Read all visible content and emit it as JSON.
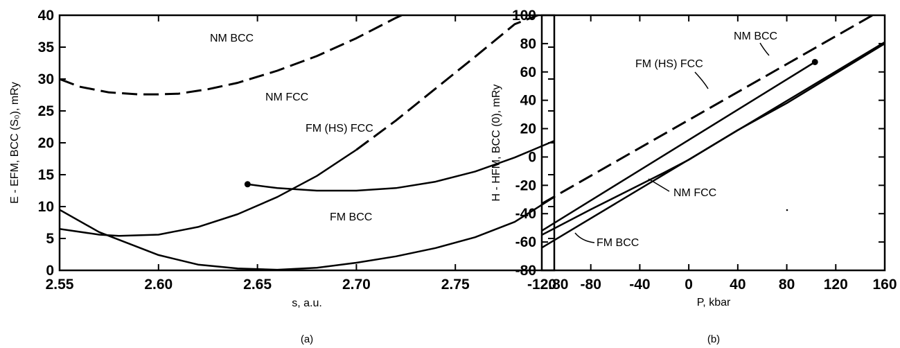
{
  "chart_data": [
    {
      "type": "line",
      "caption": "(a)",
      "xlabel": "s, a.u.",
      "ylabel": "E - EFM, BCC (S₀), mRy",
      "xlim": [
        2.55,
        2.8
      ],
      "ylim": [
        0,
        40
      ],
      "xticks": [
        2.55,
        2.6,
        2.65,
        2.7,
        2.75,
        2.8
      ],
      "xtick_labels": [
        "2.55",
        "2.60",
        "2.65",
        "2.70",
        "2.75",
        "2.80"
      ],
      "yticks": [
        0,
        5,
        10,
        15,
        20,
        25,
        30,
        35,
        40
      ],
      "ytick_labels": [
        "0",
        "5",
        "10",
        "15",
        "20",
        "25",
        "30",
        "35",
        "40"
      ],
      "series": [
        {
          "name": "NM BCC",
          "dashed": true,
          "x": [
            2.55,
            2.56,
            2.575,
            2.59,
            2.6,
            2.61,
            2.625,
            2.64,
            2.66,
            2.68,
            2.7,
            2.72,
            2.73
          ],
          "y": [
            30.0,
            28.8,
            27.9,
            27.6,
            27.6,
            27.7,
            28.4,
            29.4,
            31.3,
            33.6,
            36.4,
            39.6,
            41.0
          ]
        },
        {
          "name": "NM FCC",
          "dashed": false,
          "x": [
            2.55,
            2.57,
            2.58,
            2.6,
            2.62,
            2.64,
            2.66,
            2.68,
            2.7
          ],
          "y": [
            6.5,
            5.6,
            5.4,
            5.6,
            6.8,
            8.8,
            11.5,
            14.8,
            18.9
          ]
        },
        {
          "name": "NM FCC",
          "dashed": true,
          "x": [
            2.7,
            2.72,
            2.74,
            2.76,
            2.78,
            2.8
          ],
          "y": [
            18.9,
            23.5,
            28.5,
            33.5,
            38.6,
            41.0
          ]
        },
        {
          "name": "FM (HS) FCC",
          "dashed": false,
          "x": [
            2.645,
            2.66,
            2.68,
            2.7,
            2.72,
            2.74,
            2.76,
            2.78,
            2.8
          ],
          "y": [
            13.5,
            12.9,
            12.5,
            12.5,
            12.9,
            13.9,
            15.5,
            17.7,
            20.3
          ]
        },
        {
          "name": "FM BCC",
          "dashed": false,
          "x": [
            2.55,
            2.57,
            2.6,
            2.62,
            2.64,
            2.66,
            2.68,
            2.7,
            2.72,
            2.74,
            2.76,
            2.78,
            2.8
          ],
          "y": [
            9.5,
            6.0,
            2.4,
            0.9,
            0.3,
            0.1,
            0.4,
            1.2,
            2.2,
            3.5,
            5.2,
            7.6,
            11.5
          ]
        }
      ],
      "markers": [
        {
          "x": 2.645,
          "y": 13.5
        }
      ],
      "annotations": [
        "NM BCC",
        "NM FCC",
        "FM (HS) FCC",
        "FM BCC"
      ]
    },
    {
      "type": "line",
      "caption": "(b)",
      "xlabel": "P, kbar",
      "ylabel": "H - HFM, BCC (0), mRy",
      "xlim": [
        -120,
        160
      ],
      "ylim": [
        -80,
        100
      ],
      "xticks": [
        -120,
        -80,
        -40,
        0,
        40,
        80,
        120,
        160
      ],
      "xtick_labels": [
        "-120",
        "-80",
        "-40",
        "0",
        "40",
        "80",
        "120",
        "160"
      ],
      "yticks": [
        -80,
        -60,
        -40,
        -20,
        0,
        20,
        40,
        60,
        80,
        100
      ],
      "ytick_labels": [
        "-80",
        "-60",
        "-40",
        "-20",
        "0",
        "20",
        "40",
        "60",
        "80",
        "100"
      ],
      "series": [
        {
          "name": "NM BCC",
          "dashed": true,
          "x": [
            -120,
            150
          ],
          "y": [
            -33,
            100
          ]
        },
        {
          "name": "FM (HS) FCC",
          "dashed": false,
          "x": [
            -120,
            103
          ],
          "y": [
            -52,
            67
          ]
        },
        {
          "name": "NM FCC",
          "dashed": false,
          "x": [
            -120,
            -80,
            -50,
            -20,
            0,
            40,
            80,
            160
          ],
          "y": [
            -55,
            -37,
            -24,
            -11,
            -2,
            19,
            38,
            80
          ]
        },
        {
          "name": "FM BCC",
          "dashed": false,
          "x": [
            -120,
            160
          ],
          "y": [
            -64,
            81
          ]
        }
      ],
      "markers": [
        {
          "x": 103,
          "y": 67
        }
      ],
      "annotations": [
        "NM BCC",
        "FM (HS) FCC",
        "NM FCC",
        "FM BCC"
      ]
    }
  ]
}
